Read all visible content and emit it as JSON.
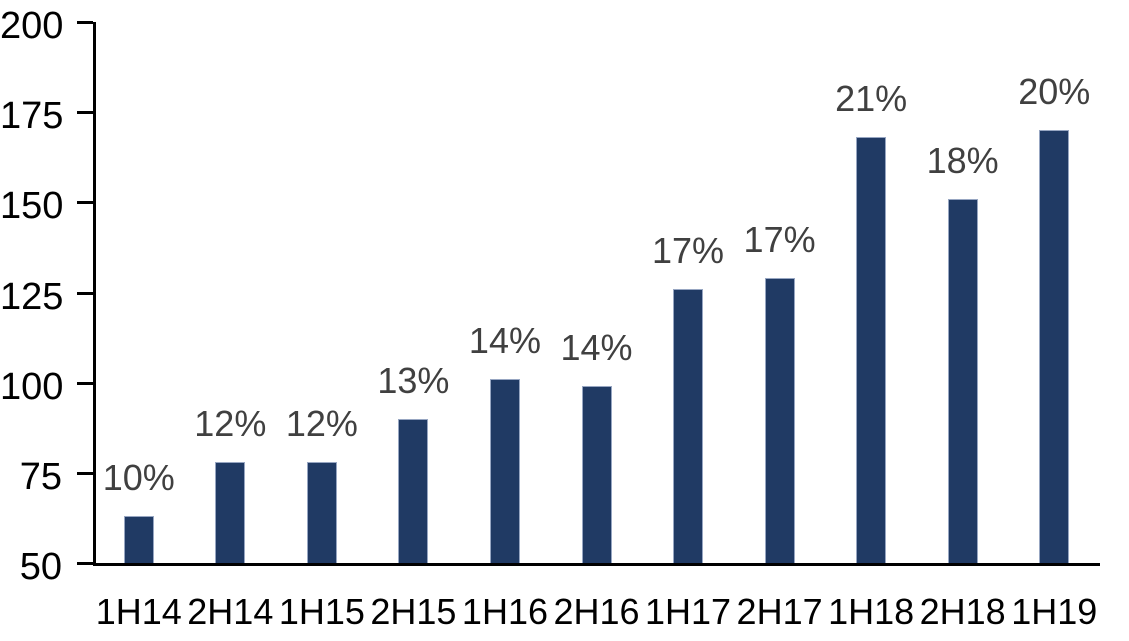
{
  "chart_data": {
    "type": "bar",
    "title": "",
    "xlabel": "",
    "ylabel": "",
    "categories": [
      "1H14",
      "2H14",
      "1H15",
      "2H15",
      "1H16",
      "2H16",
      "1H17",
      "2H17",
      "1H18",
      "2H18",
      "1H19"
    ],
    "series": [
      {
        "name": "bar-values",
        "values": [
          63,
          78,
          78,
          90,
          101,
          99,
          126,
          129,
          168,
          151,
          170
        ]
      }
    ],
    "data_labels": [
      "10%",
      "12%",
      "12%",
      "13%",
      "14%",
      "14%",
      "17%",
      "17%",
      "21%",
      "18%",
      "20%"
    ],
    "ylim": [
      50,
      200
    ],
    "y_ticks": [
      200,
      175,
      150,
      125,
      100,
      75,
      50
    ],
    "grid": false,
    "legend_position": "none",
    "colors": {
      "bar_fill": "#203A64",
      "bar_border": "#97A6C2",
      "data_label": "#404040",
      "axis": "#000000",
      "tick_label": "#000000",
      "background": "#FFFFFF"
    }
  }
}
